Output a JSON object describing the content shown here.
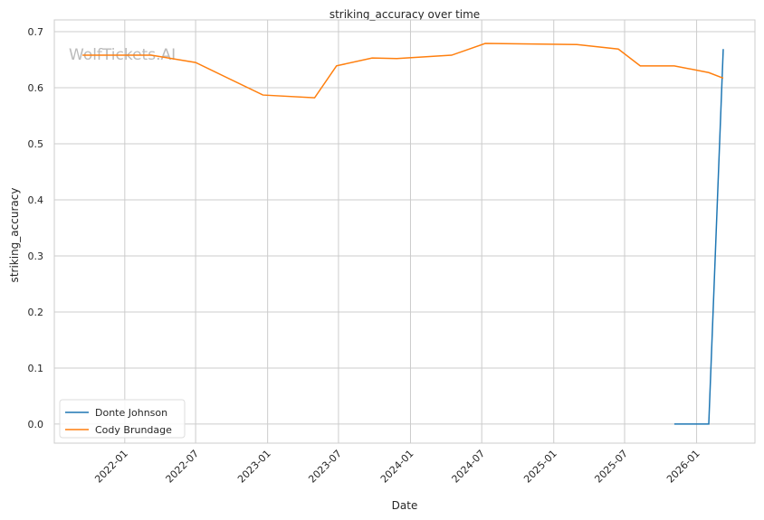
{
  "chart_data": {
    "type": "line",
    "title": "striking_accuracy over time",
    "xlabel": "Date",
    "ylabel": "striking_accuracy",
    "watermark": "WolfTickets.AI",
    "xlim": [
      "2021-07-05",
      "2026-05-30"
    ],
    "ylim": [
      -0.034,
      0.721
    ],
    "grid": true,
    "legend_position": "bottom-left",
    "x_ticks": [
      "2022-01",
      "2022-07",
      "2023-01",
      "2023-07",
      "2024-01",
      "2024-07",
      "2025-01",
      "2025-07",
      "2026-01"
    ],
    "y_ticks": [
      "0.0",
      "0.1",
      "0.2",
      "0.3",
      "0.4",
      "0.5",
      "0.6",
      "0.7"
    ],
    "series": [
      {
        "name": "Donte Johnson",
        "color": "#1f77b4",
        "x": [
          "2025-11-05",
          "2026-02-01",
          "2026-03-10"
        ],
        "y": [
          0.0,
          0.0,
          0.669
        ]
      },
      {
        "name": "Cody Brundage",
        "color": "#ff7f0e",
        "x": [
          "2021-09-15",
          "2022-03-10",
          "2022-07-01",
          "2022-12-20",
          "2023-05-01",
          "2023-06-26",
          "2023-09-25",
          "2023-11-27",
          "2024-04-15",
          "2024-07-10",
          "2025-03-01",
          "2025-06-15",
          "2025-08-10",
          "2025-11-05",
          "2026-02-01",
          "2026-03-10"
        ],
        "y": [
          0.658,
          0.658,
          0.645,
          0.587,
          0.582,
          0.639,
          0.653,
          0.652,
          0.658,
          0.679,
          0.677,
          0.669,
          0.639,
          0.639,
          0.627,
          0.617
        ]
      }
    ]
  }
}
